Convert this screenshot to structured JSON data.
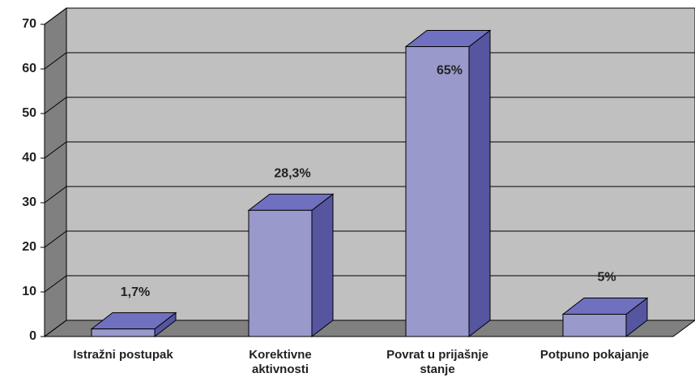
{
  "chart_data": {
    "type": "bar3d",
    "categories": [
      "Istražni postupak",
      "Korektivne aktivnosti",
      "Povrat u prijašnje stanje",
      "Potpuno pokajanje"
    ],
    "values": [
      1.7,
      28.3,
      65,
      5
    ],
    "value_labels": [
      "1,7%",
      "28,3%",
      "65%",
      "5%"
    ],
    "color": "#9999cc",
    "ylim": [
      0,
      70
    ],
    "yticks": [
      0,
      10,
      20,
      30,
      40,
      50,
      60,
      70
    ],
    "grid": true
  }
}
